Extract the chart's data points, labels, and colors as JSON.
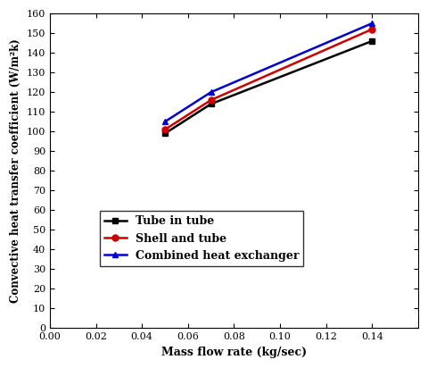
{
  "x_values": [
    0.05,
    0.07,
    0.14
  ],
  "tube_in_tube": [
    99,
    114,
    146
  ],
  "shell_and_tube": [
    101,
    116,
    152
  ],
  "combined_heat_exchanger": [
    105,
    120,
    155
  ],
  "xlabel": "Mass flow rate (kg/sec)",
  "ylabel": "Convective heat transfer coefficient (W/m²k)",
  "xlim": [
    0.0,
    0.16
  ],
  "ylim": [
    0,
    160
  ],
  "xticks": [
    0.0,
    0.02,
    0.04,
    0.06,
    0.08,
    0.1,
    0.12,
    0.14
  ],
  "yticks": [
    0,
    10,
    20,
    30,
    40,
    50,
    60,
    70,
    80,
    90,
    100,
    110,
    120,
    130,
    140,
    150,
    160
  ],
  "legend_labels": [
    "Tube in tube",
    "Shell and tube",
    "Combined heat exchanger"
  ],
  "colors": [
    "#000000",
    "#cc0000",
    "#0000cc"
  ],
  "markers": [
    "s",
    "o",
    "^"
  ],
  "linewidth": 1.8,
  "markersize": 5,
  "background_color": "#ffffff"
}
